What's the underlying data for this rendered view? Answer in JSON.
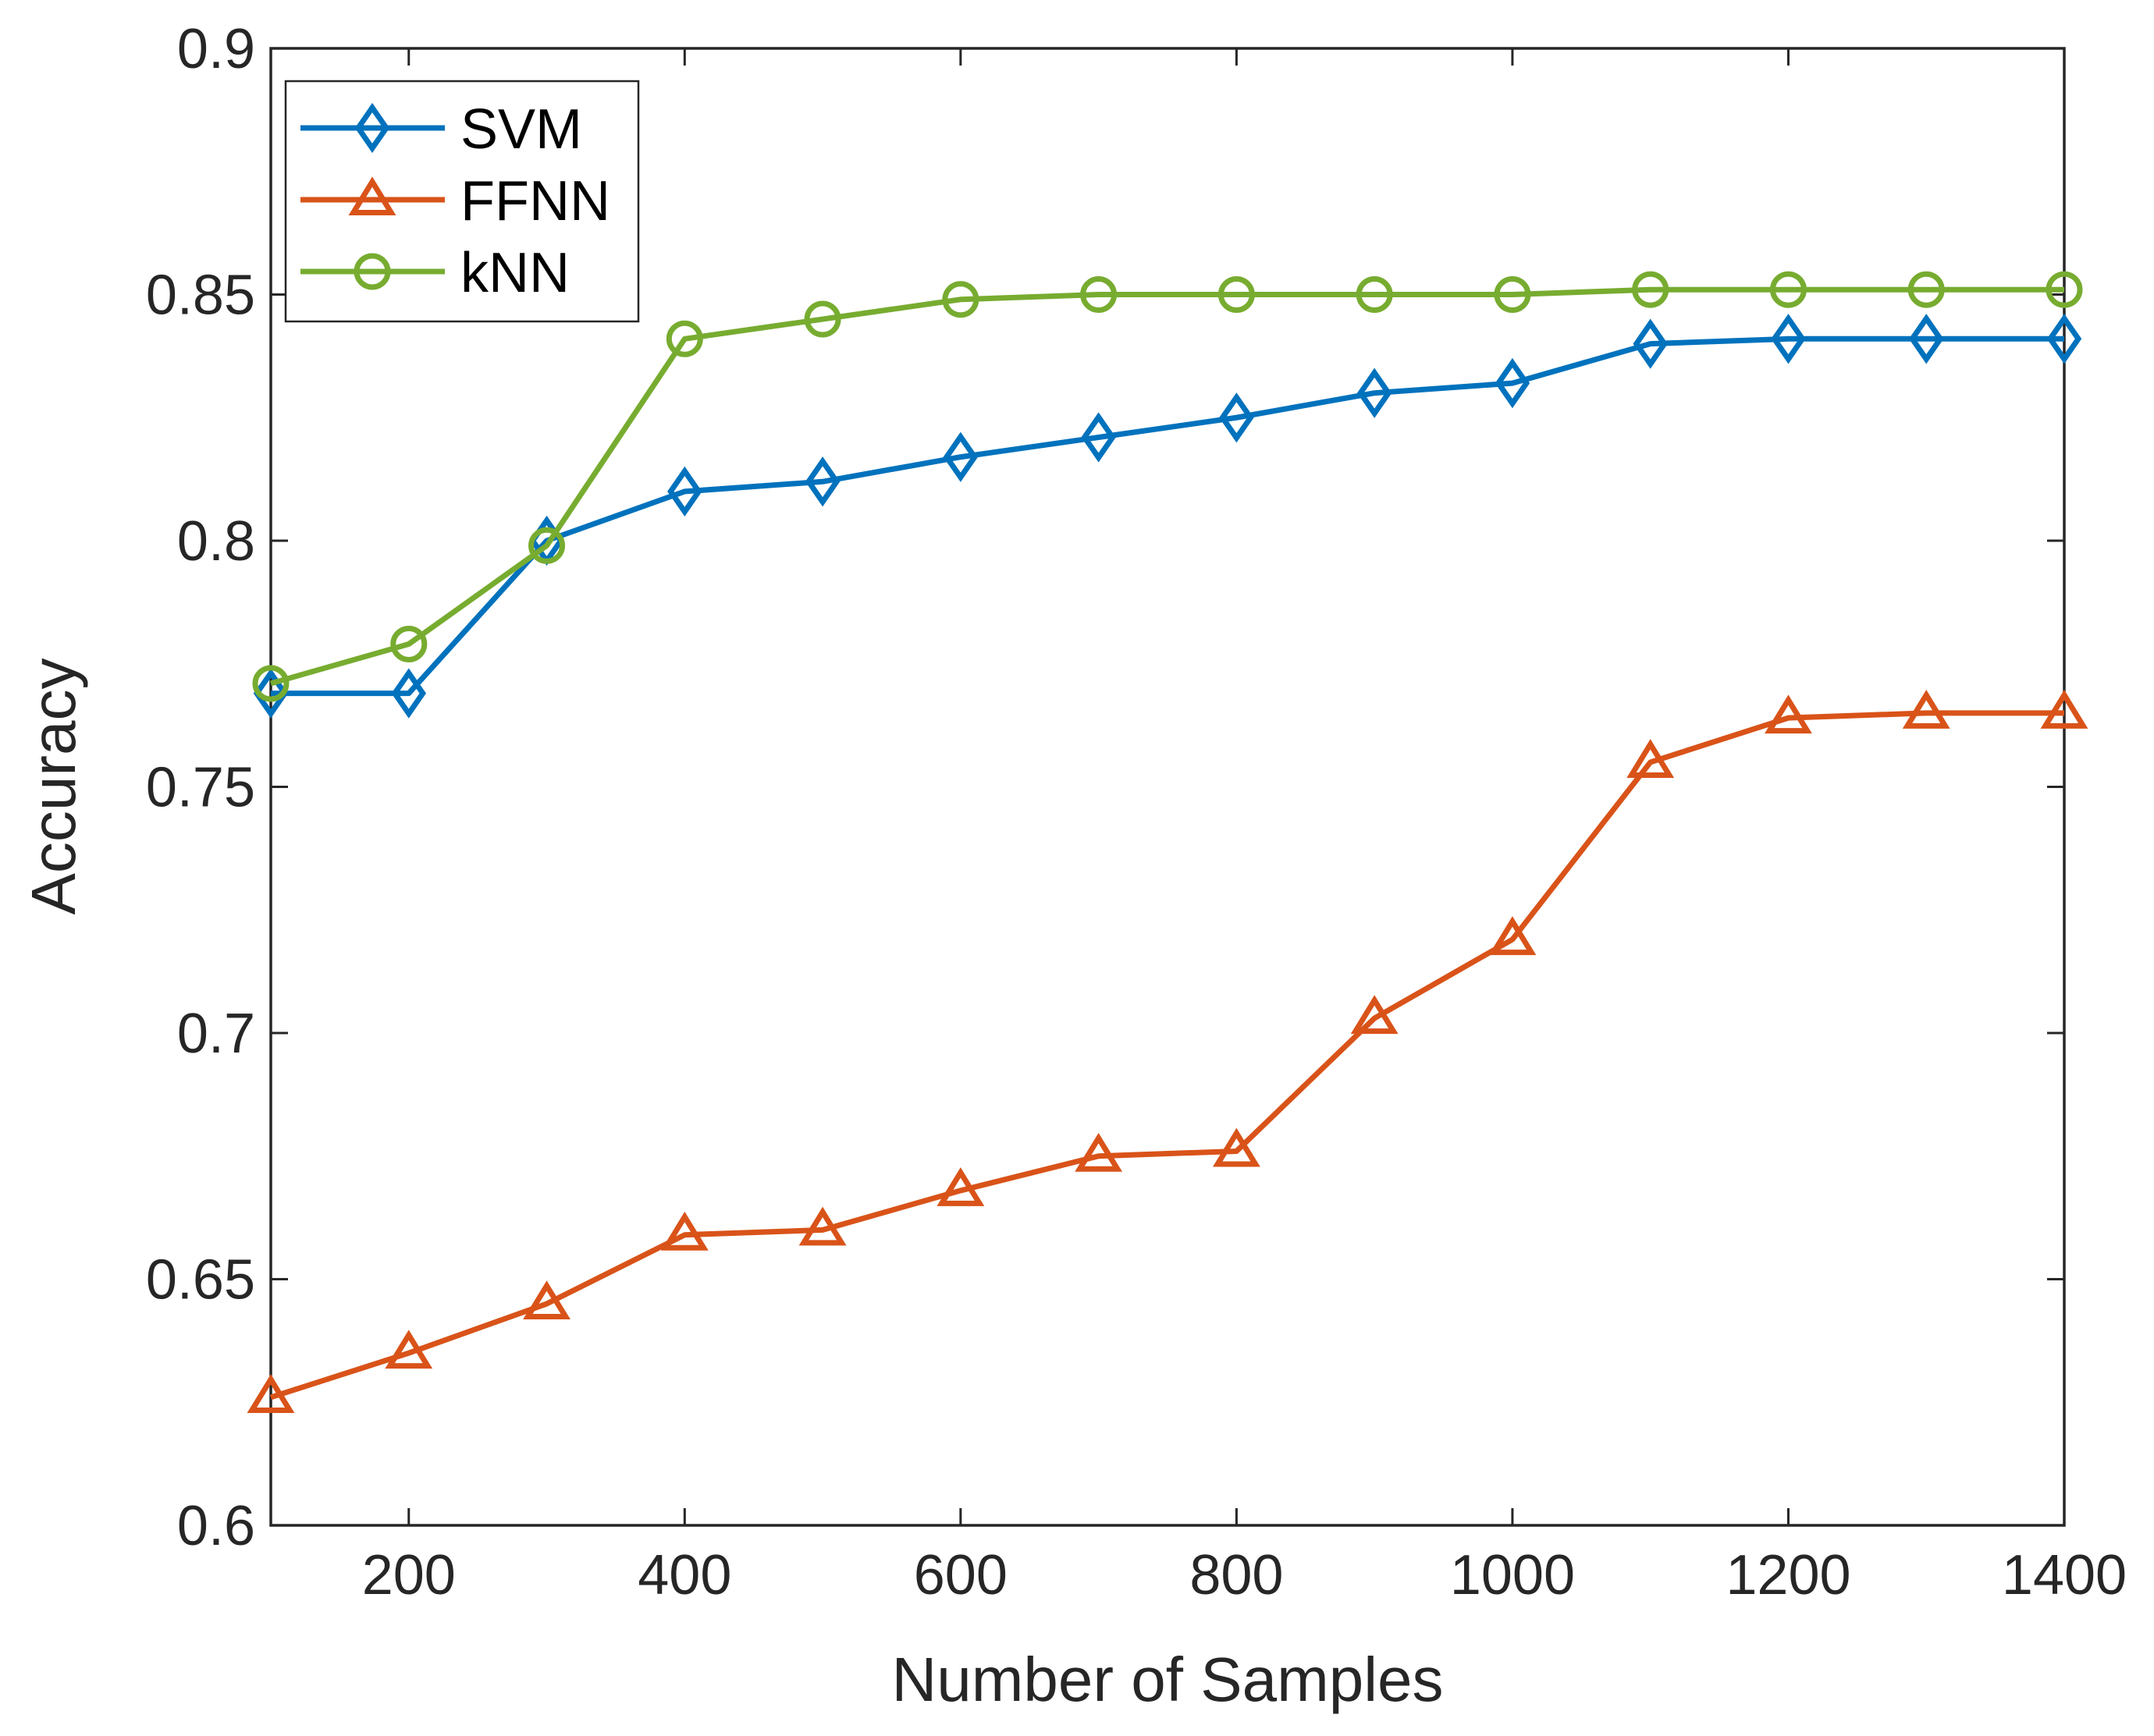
{
  "chart_data": {
    "type": "line",
    "xlabel": "Number of Samples",
    "ylabel": "Accuracy",
    "xlim": [
      100,
      1400
    ],
    "ylim": [
      0.6,
      0.9
    ],
    "xticks": [
      200,
      400,
      600,
      800,
      1000,
      1200,
      1400
    ],
    "xtick_labels": [
      "200",
      "400",
      "600",
      "800",
      "1000",
      "1200",
      "1400"
    ],
    "yticks": [
      0.6,
      0.65,
      0.7,
      0.75,
      0.8,
      0.85,
      0.9
    ],
    "ytick_labels": [
      "0.6",
      "0.65",
      "0.7",
      "0.75",
      "0.8",
      "0.85",
      "0.9"
    ],
    "grid": false,
    "legend_position": "top-left",
    "x": [
      100,
      200,
      300,
      400,
      500,
      600,
      700,
      800,
      900,
      1000,
      1100,
      1200,
      1300,
      1400
    ],
    "series": [
      {
        "name": "SVM",
        "color": "#0072BD",
        "marker": "diamond",
        "values": [
          0.769,
          0.769,
          0.8,
          0.81,
          0.812,
          0.817,
          0.821,
          0.825,
          0.83,
          0.832,
          0.84,
          0.841,
          0.841,
          0.841
        ]
      },
      {
        "name": "FFNN",
        "color": "#D95319",
        "marker": "triangle",
        "values": [
          0.626,
          0.635,
          0.645,
          0.659,
          0.66,
          0.668,
          0.675,
          0.676,
          0.703,
          0.719,
          0.755,
          0.764,
          0.765,
          0.765
        ]
      },
      {
        "name": "kNN",
        "color": "#77AC30",
        "marker": "circle",
        "values": [
          0.771,
          0.779,
          0.799,
          0.841,
          0.845,
          0.849,
          0.85,
          0.85,
          0.85,
          0.85,
          0.851,
          0.851,
          0.851,
          0.851
        ]
      }
    ]
  }
}
